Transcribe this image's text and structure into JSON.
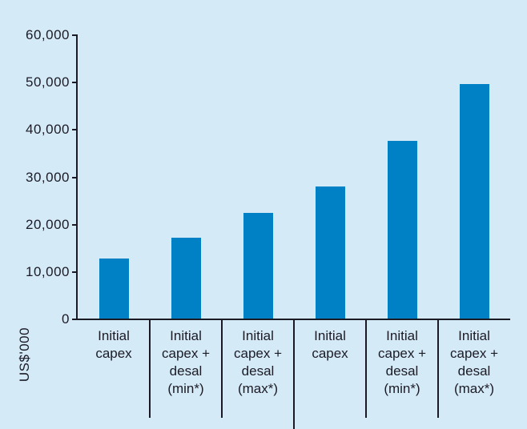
{
  "chart_data": {
    "type": "bar",
    "ylabel": "US$'000",
    "categories": [
      "Initial capex",
      "Initial capex + desal (min*)",
      "Initial capex + desal (max*)",
      "Initial capex",
      "Initial capex + desal (min*)",
      "Initial capex + desal (max*)"
    ],
    "category_lines": [
      [
        "Initial",
        "capex"
      ],
      [
        "Initial",
        "capex +",
        "desal",
        "(min*)"
      ],
      [
        "Initial",
        "capex +",
        "desal",
        "(max*)"
      ],
      [
        "Initial",
        "capex"
      ],
      [
        "Initial",
        "capex +",
        "desal",
        "(min*)"
      ],
      [
        "Initial",
        "capex +",
        "desal",
        "(max*)"
      ]
    ],
    "values": [
      12800,
      17200,
      22500,
      28000,
      37700,
      49700
    ],
    "ylim": [
      0,
      60000
    ],
    "ytick_interval": 10000,
    "ytick_labels": [
      "0",
      "10,000",
      "20,000",
      "30,000",
      "40,000",
      "50,000",
      "60,000"
    ],
    "grid": false,
    "legend": false,
    "groups": [
      [
        0,
        1,
        2
      ],
      [
        3,
        4,
        5
      ]
    ],
    "group_separator_after_category": 3,
    "colors": {
      "bar": "#0081c6",
      "background": "#d5eaf7",
      "axis": "#1b1b26",
      "text": "#1b1b26"
    }
  }
}
